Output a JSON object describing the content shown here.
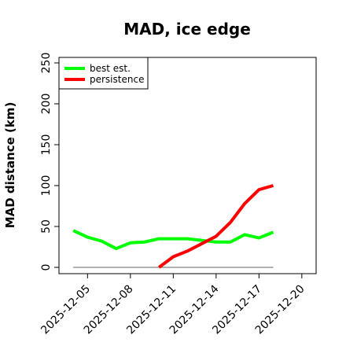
{
  "chart_data": {
    "type": "line",
    "title": "MAD, ice edge",
    "ylabel": "MAD distance (km)",
    "xlabel": "",
    "ylim": [
      0,
      250
    ],
    "xlim": [
      "2025-12-03",
      "2025-12-21"
    ],
    "y_ticks": [
      0,
      50,
      100,
      150,
      200,
      250
    ],
    "x_ticks": [
      "2025-12-05",
      "2025-12-08",
      "2025-12-11",
      "2025-12-14",
      "2025-12-17",
      "2025-12-20"
    ],
    "legend_position": "top-left",
    "grid": false,
    "series": [
      {
        "name": "best est.",
        "color": "#00ff00",
        "points": [
          {
            "x": "2025-12-04",
            "y": 45
          },
          {
            "x": "2025-12-05",
            "y": 37
          },
          {
            "x": "2025-12-06",
            "y": 32
          },
          {
            "x": "2025-12-07",
            "y": 23
          },
          {
            "x": "2025-12-08",
            "y": 30
          },
          {
            "x": "2025-12-09",
            "y": 31
          },
          {
            "x": "2025-12-10",
            "y": 35
          },
          {
            "x": "2025-12-11",
            "y": 35
          },
          {
            "x": "2025-12-12",
            "y": 35
          },
          {
            "x": "2025-12-13",
            "y": 33
          },
          {
            "x": "2025-12-14",
            "y": 31
          },
          {
            "x": "2025-12-15",
            "y": 31
          },
          {
            "x": "2025-12-16",
            "y": 40
          },
          {
            "x": "2025-12-17",
            "y": 36
          },
          {
            "x": "2025-12-18",
            "y": 43
          }
        ]
      },
      {
        "name": "persistence",
        "color": "#ff0000",
        "points": [
          {
            "x": "2025-12-10",
            "y": 0
          },
          {
            "x": "2025-12-11",
            "y": 13
          },
          {
            "x": "2025-12-12",
            "y": 20
          },
          {
            "x": "2025-12-13",
            "y": 29
          },
          {
            "x": "2025-12-14",
            "y": 38
          },
          {
            "x": "2025-12-15",
            "y": 55
          },
          {
            "x": "2025-12-16",
            "y": 78
          },
          {
            "x": "2025-12-17",
            "y": 95
          },
          {
            "x": "2025-12-18",
            "y": 100
          }
        ]
      }
    ],
    "reference_line": {
      "y": 0,
      "x_start": "2025-12-04",
      "x_end": "2025-12-18",
      "color": "#808080"
    }
  }
}
